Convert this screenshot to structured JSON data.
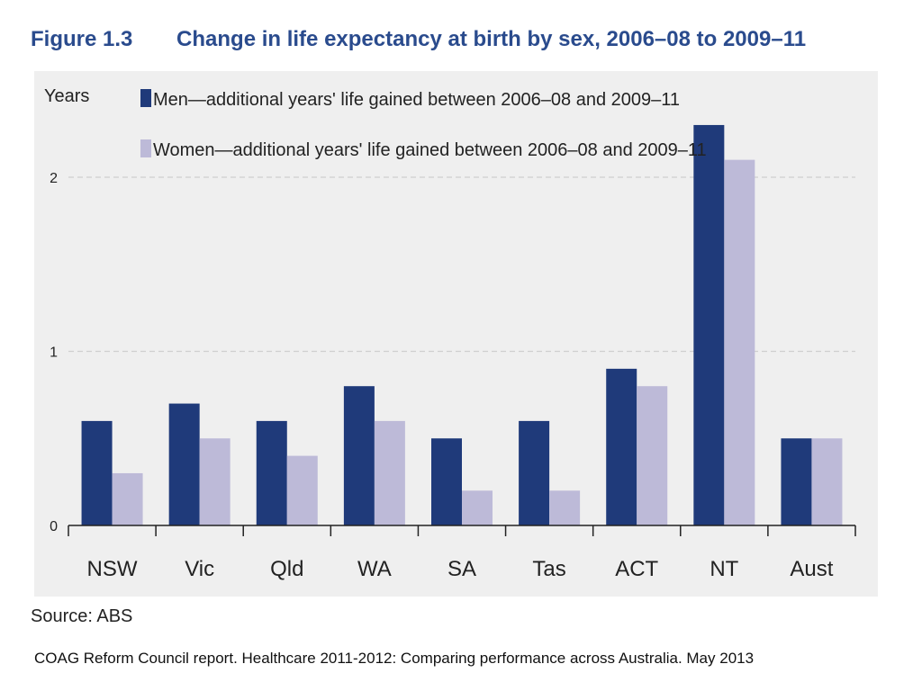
{
  "figure": {
    "number": "Figure 1.3",
    "title": "Change in life expectancy at birth by sex, 2006–08 to 2009–11"
  },
  "source": "Source: ABS",
  "citation": "COAG Reform Council report. Healthcare 2011-2012: Comparing performance across Australia.  May 2013",
  "colors": {
    "men": "#1f3a7a",
    "women": "#bdbad8",
    "panel": "#efefef",
    "grid": "#cfcfcf",
    "header": "#2a4b8d"
  },
  "chart_data": {
    "type": "bar",
    "title": "Change in life expectancy at birth by sex, 2006–08 to 2009–11",
    "ylabel": "Years",
    "xlabel": "",
    "categories": [
      "NSW",
      "Vic",
      "Qld",
      "WA",
      "SA",
      "Tas",
      "ACT",
      "NT",
      "Aust"
    ],
    "series": [
      {
        "name": "Men—additional years' life gained between 2006–08 and 2009–11",
        "values": [
          0.6,
          0.7,
          0.6,
          0.8,
          0.5,
          0.6,
          0.9,
          2.3,
          0.5
        ]
      },
      {
        "name": "Women—additional years' life gained between 2006–08 and 2009–11",
        "values": [
          0.3,
          0.5,
          0.4,
          0.6,
          0.2,
          0.2,
          0.8,
          2.1,
          0.5
        ]
      }
    ],
    "ylim": [
      0,
      2.3
    ],
    "yticks": [
      0,
      1,
      2
    ],
    "grid": true,
    "legend_position": "top-left"
  }
}
